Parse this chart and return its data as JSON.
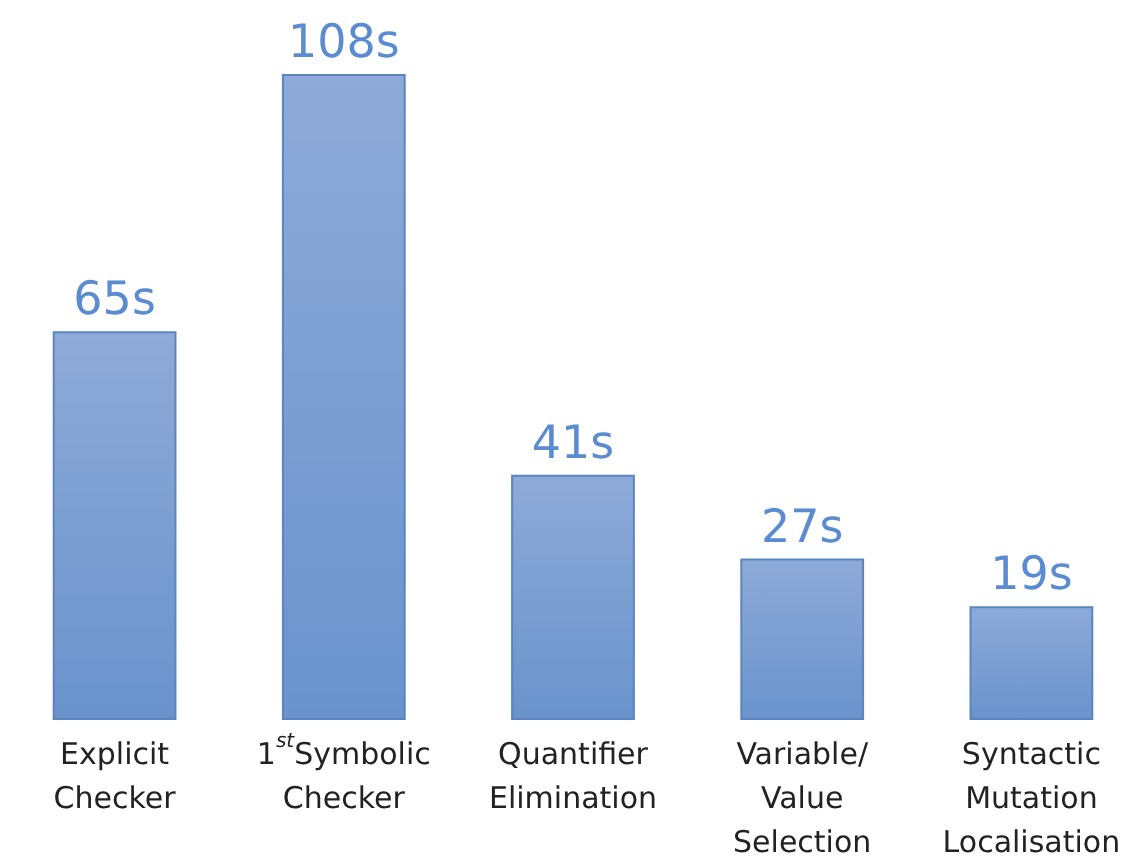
{
  "chart_data": {
    "type": "bar",
    "categories": [
      "Explicit Checker",
      "1$^{st}$Symbolic Checker",
      "Quantifier Elimination",
      "Variable/ Value Selection",
      "Syntactic Mutation Localisation"
    ],
    "values": [
      65,
      108,
      41,
      27,
      19
    ],
    "color": "#6a93cc",
    "value_labels": [
      "65s",
      "108s",
      "41s",
      "27s",
      "19s"
    ]
  }
}
